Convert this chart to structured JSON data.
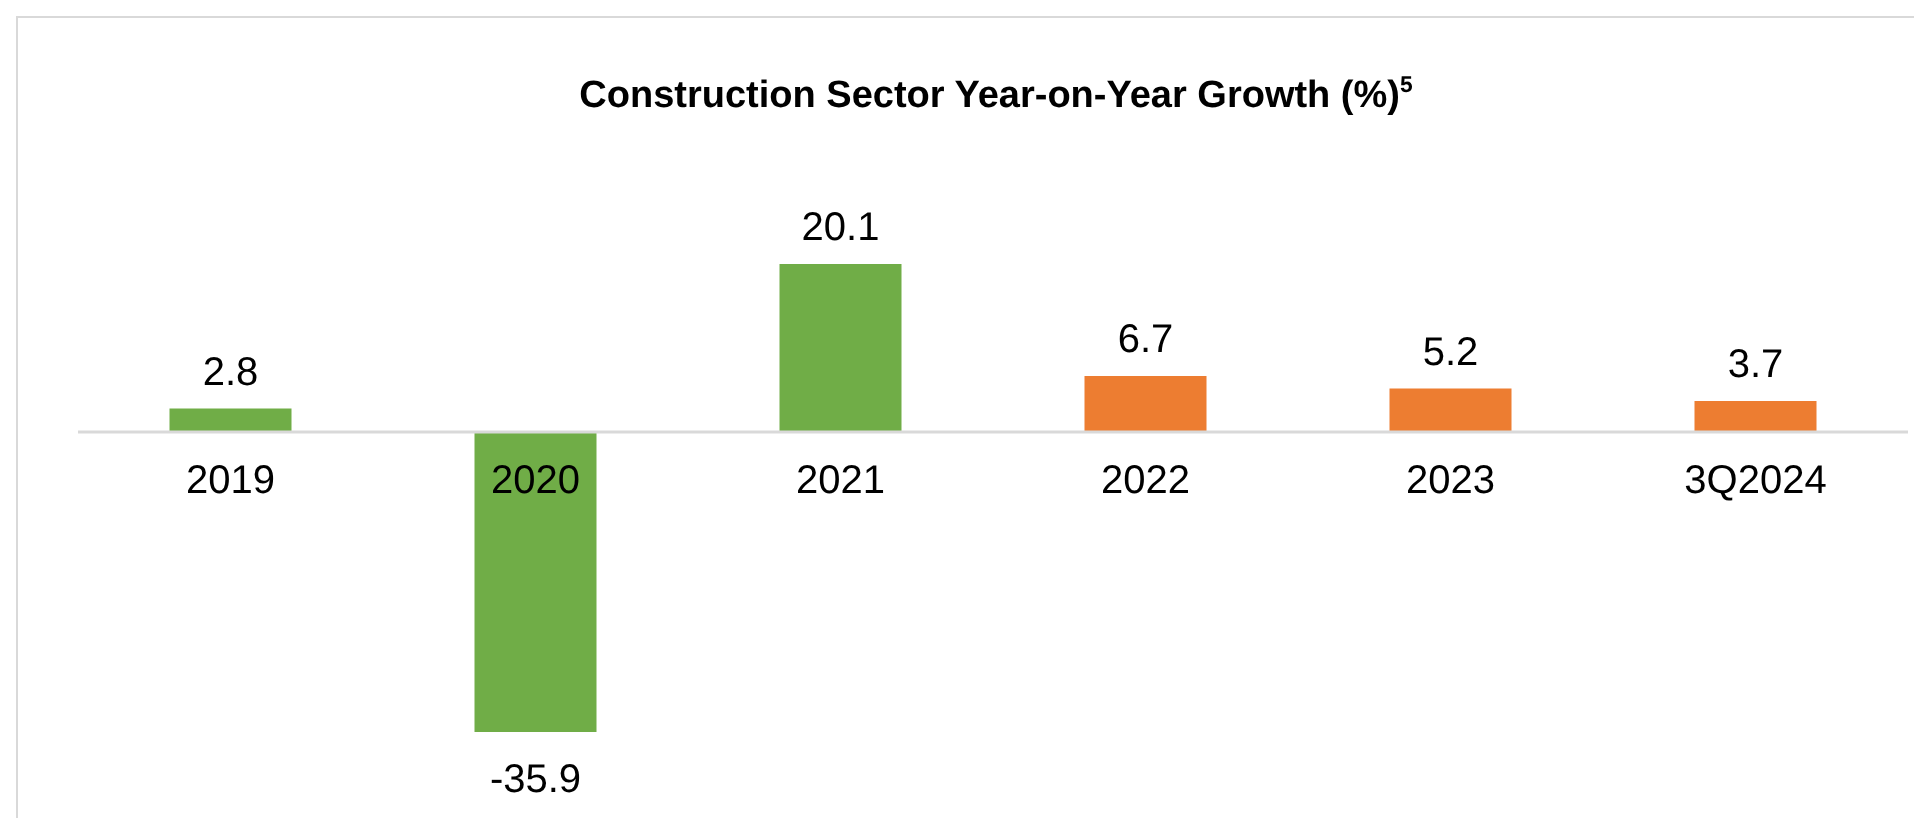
{
  "chart_data": {
    "type": "bar",
    "title": "Construction Sector Year-on-Year Growth (%)$^{5}$",
    "categories": [
      "2019",
      "2020",
      "2021",
      "2022",
      "2023",
      "3Q2024"
    ],
    "values": [
      2.8,
      -35.9,
      20.1,
      6.7,
      5.2,
      3.7
    ],
    "colors": [
      "#70ad47",
      "#70ad47",
      "#70ad47",
      "#ed7d31",
      "#ed7d31",
      "#ed7d31"
    ],
    "data_labels": true
  }
}
